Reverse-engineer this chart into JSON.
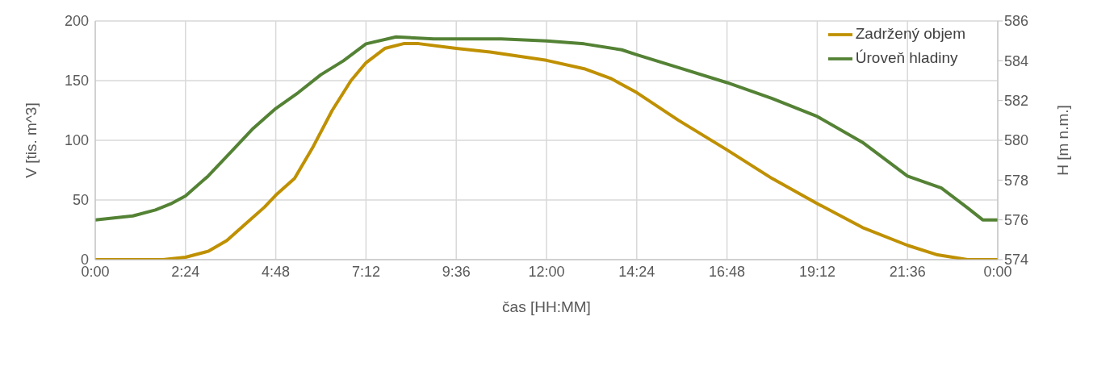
{
  "chart_data": {
    "type": "line",
    "xlabel": "čas [HH:MM]",
    "ylabel": "V [tis. m^3]",
    "y2label": "H [m n.m.]",
    "xlim": [
      0,
      24
    ],
    "xticks": [
      {
        "value": 0,
        "label": "0:00"
      },
      {
        "value": 2.4,
        "label": "2:24"
      },
      {
        "value": 4.8,
        "label": "4:48"
      },
      {
        "value": 7.2,
        "label": "7:12"
      },
      {
        "value": 9.6,
        "label": "9:36"
      },
      {
        "value": 12,
        "label": "12:00"
      },
      {
        "value": 14.4,
        "label": "14:24"
      },
      {
        "value": 16.8,
        "label": "16:48"
      },
      {
        "value": 19.2,
        "label": "19:12"
      },
      {
        "value": 21.6,
        "label": "21:36"
      },
      {
        "value": 24,
        "label": "0:00"
      }
    ],
    "ylim": [
      0,
      200
    ],
    "yticks": [
      0,
      50,
      100,
      150,
      200
    ],
    "y2lim": [
      574,
      586
    ],
    "y2ticks": [
      574,
      576,
      578,
      580,
      582,
      584,
      586
    ],
    "grid": true,
    "legend": "top right",
    "marker": "none",
    "line_style": "solid",
    "series": [
      {
        "name": "Zadržený objem",
        "color": "#bf9000",
        "x": [
          0,
          1.8,
          2.4,
          3.0,
          3.5,
          4.0,
          4.5,
          4.8,
          5.3,
          5.8,
          6.3,
          6.8,
          7.2,
          7.7,
          8.2,
          8.6,
          9.6,
          10.5,
          12.0,
          13.0,
          13.7,
          14.4,
          15.5,
          16.8,
          18.0,
          19.2,
          20.4,
          21.6,
          22.4,
          23.2,
          24
        ],
        "values": [
          0,
          0,
          2,
          7,
          16,
          30,
          44,
          54,
          68,
          95,
          125,
          150,
          165,
          177,
          181,
          181,
          177,
          174,
          167,
          160,
          152,
          140,
          117,
          92,
          68,
          47,
          27,
          12,
          4,
          0,
          0
        ]
      },
      {
        "name": "Úroveň hladiny",
        "color": "#548235",
        "axis": "y2",
        "x": [
          0,
          1.0,
          1.6,
          2.0,
          2.4,
          3.0,
          3.6,
          4.2,
          4.8,
          5.4,
          6.0,
          6.6,
          7.2,
          8.0,
          9.0,
          10.8,
          12.0,
          13.0,
          14.0,
          14.4,
          15.6,
          16.8,
          18.0,
          19.2,
          20.4,
          21.6,
          22.5,
          23.2,
          23.6,
          24
        ],
        "values": [
          576,
          576.2,
          576.5,
          576.8,
          577.2,
          578.2,
          579.4,
          580.6,
          581.6,
          582.4,
          583.3,
          584.0,
          584.85,
          585.2,
          585.1,
          585.1,
          585.0,
          584.85,
          584.55,
          584.3,
          583.6,
          582.9,
          582.1,
          581.2,
          579.9,
          578.2,
          577.6,
          576.6,
          576.0,
          576
        ]
      }
    ]
  }
}
